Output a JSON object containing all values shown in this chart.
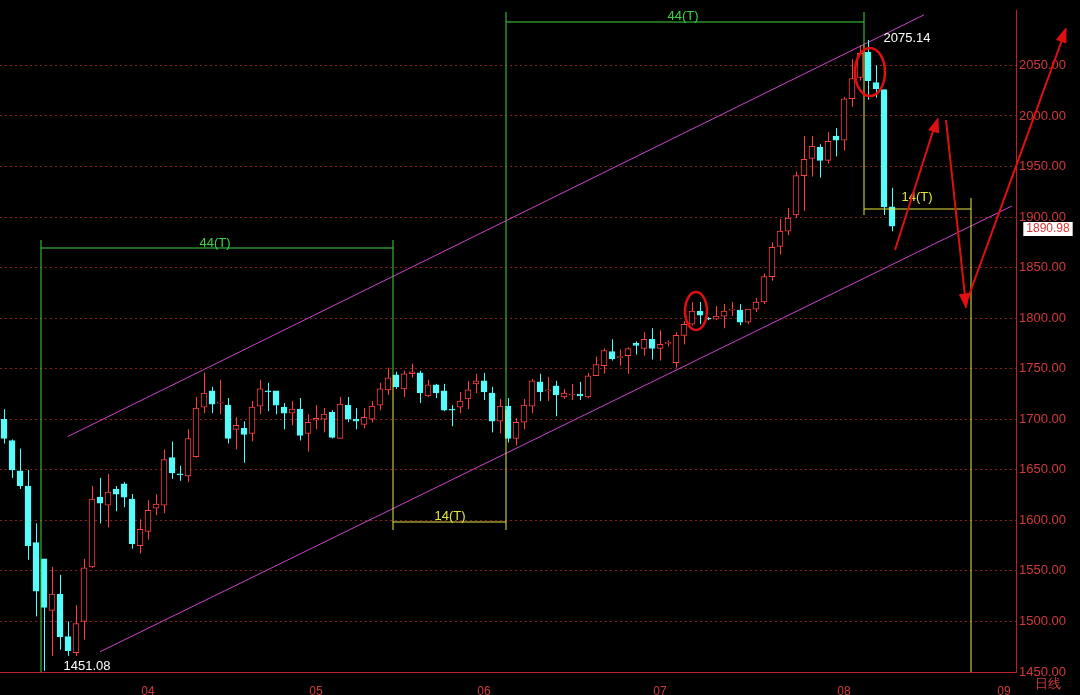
{
  "chart_data": {
    "type": "candlestick",
    "categories": [
      null,
      null,
      null,
      null,
      null,
      null,
      null,
      null,
      null,
      null,
      null,
      null,
      null,
      null,
      null,
      null,
      null,
      null,
      "04",
      null,
      null,
      null,
      null,
      null,
      null,
      null,
      null,
      null,
      null,
      null,
      null,
      null,
      null,
      null,
      null,
      null,
      null,
      null,
      null,
      "05",
      null,
      null,
      null,
      null,
      null,
      null,
      null,
      null,
      null,
      null,
      null,
      null,
      null,
      null,
      null,
      null,
      null,
      null,
      null,
      null,
      "06",
      null,
      null,
      null,
      null,
      null,
      null,
      null,
      null,
      null,
      null,
      null,
      null,
      null,
      null,
      null,
      null,
      null,
      null,
      null,
      null,
      null,
      "07",
      null,
      null,
      null,
      null,
      null,
      null,
      null,
      null,
      null,
      null,
      null,
      null,
      null,
      null,
      null,
      null,
      null,
      null,
      null,
      null,
      null,
      null,
      "08",
      null,
      null,
      null,
      null,
      null,
      null,
      null,
      null,
      null,
      null,
      null,
      null,
      null,
      null,
      null,
      null,
      null,
      null,
      null,
      "09",
      null
    ],
    "ohlc": [
      [
        1700,
        1710,
        1676,
        1681
      ],
      [
        1679,
        1680,
        1642,
        1650
      ],
      [
        1649,
        1671,
        1631,
        1634
      ],
      [
        1634,
        1650,
        1561,
        1575
      ],
      [
        1578,
        1597,
        1505,
        1530
      ],
      [
        1562,
        1562,
        1451.08,
        1514
      ],
      [
        1511,
        1554,
        1466,
        1527
      ],
      [
        1527,
        1546,
        1472,
        1485
      ],
      [
        1485,
        1500,
        1466,
        1471
      ],
      [
        1469,
        1516,
        1466,
        1498
      ],
      [
        1500,
        1562,
        1482,
        1553
      ],
      [
        1554,
        1634,
        1553,
        1621
      ],
      [
        1623,
        1642,
        1597,
        1617
      ],
      [
        1615,
        1646,
        1593,
        1628
      ],
      [
        1631,
        1634,
        1609,
        1626
      ],
      [
        1636,
        1638,
        1613,
        1623
      ],
      [
        1621,
        1626,
        1572,
        1577
      ],
      [
        1575,
        1601,
        1567,
        1591
      ],
      [
        1589,
        1620,
        1581,
        1610
      ],
      [
        1612,
        1626,
        1605,
        1616
      ],
      [
        1615,
        1670,
        1607,
        1660
      ],
      [
        1662,
        1678,
        1641,
        1647
      ],
      [
        1646,
        1654,
        1639,
        1645
      ],
      [
        1644,
        1690,
        1638,
        1681
      ],
      [
        1663,
        1722,
        1662,
        1711
      ],
      [
        1712,
        1746,
        1706,
        1726
      ],
      [
        1728,
        1732,
        1706,
        1715
      ],
      [
        1716,
        1739,
        1705,
        1716
      ],
      [
        1714,
        1721,
        1676,
        1681
      ],
      [
        1690,
        1702,
        1670,
        1694
      ],
      [
        1691,
        1698,
        1657,
        1685
      ],
      [
        1686,
        1718,
        1678,
        1712
      ],
      [
        1713,
        1739,
        1705,
        1730
      ],
      [
        1728,
        1736,
        1708,
        1727
      ],
      [
        1728,
        1728,
        1705,
        1714
      ],
      [
        1712,
        1716,
        1690,
        1706
      ],
      [
        1706,
        1718,
        1694,
        1710
      ],
      [
        1710,
        1721,
        1679,
        1684
      ],
      [
        1686,
        1705,
        1668,
        1697
      ],
      [
        1699,
        1714,
        1690,
        1701
      ],
      [
        1700,
        1711,
        1687,
        1705
      ],
      [
        1707,
        1709,
        1681,
        1682
      ],
      [
        1681,
        1722,
        1681,
        1715
      ],
      [
        1714,
        1722,
        1697,
        1700
      ],
      [
        1700,
        1711,
        1690,
        1698
      ],
      [
        1695,
        1711,
        1691,
        1702
      ],
      [
        1700,
        1718,
        1697,
        1713
      ],
      [
        1714,
        1736,
        1709,
        1730
      ],
      [
        1729,
        1751,
        1724,
        1741
      ],
      [
        1744,
        1747,
        1730,
        1732
      ],
      [
        1730,
        1748,
        1722,
        1745
      ],
      [
        1745,
        1755,
        1741,
        1747
      ],
      [
        1746,
        1748,
        1716,
        1726
      ],
      [
        1723,
        1739,
        1722,
        1734
      ],
      [
        1734,
        1735,
        1721,
        1726
      ],
      [
        1728,
        1735,
        1708,
        1709
      ],
      [
        1710,
        1714,
        1693,
        1709
      ],
      [
        1712,
        1727,
        1706,
        1718
      ],
      [
        1720,
        1738,
        1710,
        1729
      ],
      [
        1735,
        1745,
        1726,
        1738
      ],
      [
        1738,
        1746,
        1719,
        1727
      ],
      [
        1726,
        1732,
        1687,
        1698
      ],
      [
        1698,
        1720,
        1686,
        1713
      ],
      [
        1713,
        1721,
        1677,
        1681
      ],
      [
        1681,
        1701,
        1674,
        1697
      ],
      [
        1697,
        1720,
        1690,
        1714
      ],
      [
        1713,
        1740,
        1706,
        1738
      ],
      [
        1737,
        1745,
        1718,
        1727
      ],
      [
        1728,
        1742,
        1718,
        1729
      ],
      [
        1733,
        1738,
        1703,
        1724
      ],
      [
        1722,
        1730,
        1720,
        1726
      ],
      [
        1724,
        1735,
        1719,
        1725
      ],
      [
        1725,
        1737,
        1719,
        1723
      ],
      [
        1722,
        1746,
        1721,
        1743
      ],
      [
        1743,
        1762,
        1743,
        1754
      ],
      [
        1753,
        1770,
        1745,
        1768
      ],
      [
        1767,
        1779,
        1758,
        1760
      ],
      [
        1761,
        1769,
        1753,
        1762
      ],
      [
        1763,
        1771,
        1745,
        1770
      ],
      [
        1775,
        1777,
        1764,
        1773
      ],
      [
        1770,
        1786,
        1763,
        1779
      ],
      [
        1779,
        1790,
        1759,
        1770
      ],
      [
        1770,
        1788,
        1758,
        1774
      ],
      [
        1775,
        1778,
        1772,
        1776
      ],
      [
        1756,
        1786,
        1751,
        1783
      ],
      [
        1783,
        1797,
        1774,
        1794
      ],
      [
        1794,
        1816,
        1793,
        1807
      ],
      [
        1807,
        1816,
        1794,
        1803
      ],
      [
        1800,
        1801,
        1798,
        1799
      ],
      [
        1799,
        1812,
        1798,
        1802
      ],
      [
        1802,
        1814,
        1790,
        1807
      ],
      [
        1808,
        1816,
        1802,
        1809
      ],
      [
        1808,
        1814,
        1793,
        1796
      ],
      [
        1796,
        1809,
        1794,
        1809
      ],
      [
        1809,
        1820,
        1806,
        1816
      ],
      [
        1816,
        1844,
        1814,
        1841
      ],
      [
        1841,
        1875,
        1837,
        1870
      ],
      [
        1871,
        1898,
        1863,
        1886
      ],
      [
        1886,
        1909,
        1882,
        1899
      ],
      [
        1902,
        1945,
        1899,
        1941
      ],
      [
        1941,
        1980,
        1906,
        1957
      ],
      [
        1958,
        1980,
        1940,
        1970
      ],
      [
        1969,
        1972,
        1939,
        1956
      ],
      [
        1956,
        1984,
        1953,
        1975
      ],
      [
        1980,
        1988,
        1960,
        1976
      ],
      [
        1976,
        2019,
        1966,
        2017
      ],
      [
        2017,
        2056,
        2009,
        2037
      ],
      [
        2038,
        2070,
        2035,
        2062
      ],
      [
        2063,
        2075.14,
        2016,
        2035
      ],
      [
        2033,
        2050,
        2018,
        2027
      ],
      [
        2026,
        2026,
        1902,
        1910
      ],
      [
        1910,
        1929,
        1886,
        1890.98
      ],
      null,
      null,
      null,
      null,
      null,
      null,
      null,
      null,
      null,
      null,
      null,
      null,
      null,
      null,
      null
    ],
    "colors": [
      "#54fcfc",
      "#54fcfc",
      "#54fcfc",
      "#54fcfc",
      "#54fcfc",
      "#54fcfc",
      "#ff4040",
      "#54fcfc",
      "#54fcfc",
      "#ff4040",
      "#ff4040",
      "#ff4040",
      "#54fcfc",
      "#ff4040",
      "#54fcfc",
      "#54fcfc",
      "#54fcfc",
      "#ff4040",
      "#ff4040",
      "#ff4040",
      "#ff4040",
      "#54fcfc",
      "#54fcfc",
      "#ff4040",
      "#ff4040",
      "#ff4040",
      "#54fcfc",
      "#ff4040",
      "#54fcfc",
      "#ff4040",
      "#54fcfc",
      "#ff4040",
      "#ff4040",
      "#54fcfc",
      "#54fcfc",
      "#54fcfc",
      "#ff4040",
      "#54fcfc",
      "#ff4040",
      "#ff4040",
      "#ff4040",
      "#54fcfc",
      "#ff4040",
      "#54fcfc",
      "#54fcfc",
      "#ff4040",
      "#ff4040",
      "#ff4040",
      "#ff4040",
      "#54fcfc",
      "#ff4040",
      "#ff4040",
      "#54fcfc",
      "#ff4040",
      "#54fcfc",
      "#54fcfc",
      "#54fcfc",
      "#ff4040",
      "#ff4040",
      "#ff4040",
      "#54fcfc",
      "#54fcfc",
      "#ff4040",
      "#54fcfc",
      "#ff4040",
      "#ff4040",
      "#ff4040",
      "#54fcfc",
      "#ff4040",
      "#54fcfc",
      "#ff4040",
      "#ff4040",
      "#54fcfc",
      "#ff4040",
      "#ff4040",
      "#ff4040",
      "#54fcfc",
      "#ff4040",
      "#ff4040",
      "#54fcfc",
      "#ff4040",
      "#54fcfc",
      "#ff4040",
      "#ff4040",
      "#ff4040",
      "#ff4040",
      "#ff4040",
      "#54fcfc",
      "#54fcfc",
      "#ff4040",
      "#ff4040",
      "#ff4040",
      "#54fcfc",
      "#ff4040",
      "#ff4040",
      "#ff4040",
      "#ff4040",
      "#ff4040",
      "#ff4040",
      "#ff4040",
      "#ff4040",
      "#ff4040",
      "#54fcfc",
      "#ff4040",
      "#54fcfc",
      "#ff4040",
      "#ff4040",
      "#ff4040",
      "#54fcfc",
      "#54fcfc",
      "#54fcfc",
      "#54fcfc",
      null,
      null,
      null,
      null,
      null,
      null,
      null,
      null,
      null,
      null,
      null,
      null,
      null,
      null,
      null
    ],
    "series": [
      {
        "type": "line",
        "color": "#cc44cc",
        "values": [
          null,
          null,
          null,
          null,
          null,
          null,
          null,
          null,
          1683,
          null,
          null,
          null,
          null,
          null,
          null,
          null,
          null,
          null,
          null,
          null,
          null,
          null,
          null,
          null,
          null,
          null,
          null,
          null,
          null,
          null,
          null,
          null,
          null,
          null,
          null,
          null,
          null,
          null,
          null,
          null,
          null,
          null,
          null,
          null,
          null,
          null,
          null,
          null,
          null,
          null,
          null,
          null,
          null,
          null,
          null,
          null,
          null,
          null,
          null,
          null,
          null,
          null,
          null,
          null,
          null,
          null,
          null,
          null,
          null,
          null,
          null,
          null,
          null,
          null,
          null,
          null,
          null,
          null,
          null,
          null,
          null,
          null,
          null,
          null,
          null,
          null,
          null,
          null,
          null,
          null,
          null,
          null,
          null,
          null,
          null,
          null,
          null,
          null,
          null,
          null,
          null,
          null,
          null,
          null,
          null,
          null,
          null,
          null,
          null,
          null,
          null,
          null,
          null,
          null,
          null,
          2100,
          null,
          null,
          null,
          null,
          null,
          null,
          null,
          null,
          null,
          null,
          null
        ]
      },
      {
        "type": "line",
        "color": "#cc44cc",
        "values": [
          null,
          null,
          null,
          null,
          null,
          null,
          null,
          null,
          null,
          null,
          null,
          null,
          1470,
          null,
          null,
          null,
          null,
          null,
          null,
          null,
          null,
          null,
          null,
          null,
          null,
          null,
          null,
          null,
          null,
          null,
          null,
          null,
          null,
          null,
          null,
          null,
          null,
          null,
          null,
          null,
          null,
          null,
          null,
          null,
          null,
          null,
          null,
          null,
          null,
          null,
          null,
          null,
          null,
          null,
          null,
          null,
          null,
          null,
          null,
          null,
          null,
          null,
          null,
          null,
          null,
          null,
          null,
          null,
          null,
          null,
          null,
          null,
          null,
          null,
          null,
          null,
          null,
          null,
          null,
          null,
          null,
          null,
          null,
          null,
          null,
          null,
          null,
          null,
          null,
          null,
          null,
          null,
          null,
          null,
          null,
          null,
          null,
          null,
          null,
          null,
          null,
          null,
          null,
          null,
          null,
          null,
          null,
          null,
          null,
          null,
          null,
          null,
          null,
          null,
          null,
          null,
          null,
          null,
          null,
          null,
          null,
          null,
          null,
          null,
          null,
          null,
          1911
        ]
      }
    ],
    "ylim": [
      1450,
      2104
    ],
    "yticks": [
      {
        "value": 1450,
        "label": "1450.00"
      },
      {
        "value": 1500,
        "label": "1500.00"
      },
      {
        "value": 1550,
        "label": "1550.00"
      },
      {
        "value": 1600,
        "label": "1600.00"
      },
      {
        "value": 1650,
        "label": "1650.00"
      },
      {
        "value": 1700,
        "label": "1700.00"
      },
      {
        "value": 1750,
        "label": "1750.00"
      },
      {
        "value": 1800,
        "label": "1800.00"
      },
      {
        "value": 1850,
        "label": "1850.00"
      },
      {
        "value": 1900,
        "label": "1900.00"
      },
      {
        "value": 1950,
        "label": "1950.00"
      },
      {
        "value": 2000,
        "label": "2000.00"
      },
      {
        "value": 2050,
        "label": "2050.00"
      }
    ],
    "grid": "y",
    "annotations": [
      "44(T)",
      "14(T)",
      "44(T)",
      "14(T)",
      "1451.08",
      "2075.14",
      "1890.98",
      "日线"
    ]
  }
}
